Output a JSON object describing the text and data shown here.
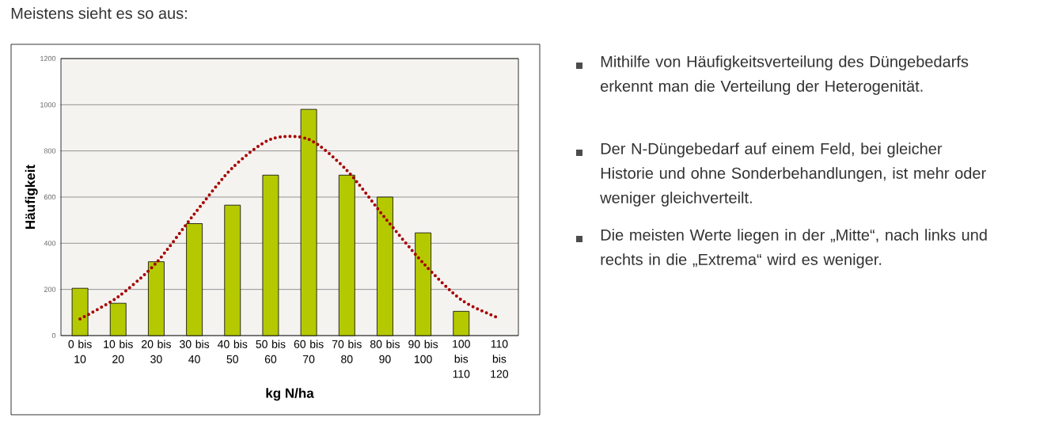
{
  "chart_data": {
    "type": "bar",
    "title": "Meistens sieht es so aus:",
    "xlabel": "kg N/ha",
    "ylabel": "Häufigkeit",
    "categories": [
      "0 bis 10",
      "10 bis 20",
      "20 bis 30",
      "30 bis 40",
      "40 bis 50",
      "50 bis 60",
      "60 bis 70",
      "70 bis 80",
      "80 bis 90",
      "90 bis 100",
      "100 bis 110",
      "110 bis 120"
    ],
    "series": [
      {
        "color": "#b5c900",
        "values": [
          205,
          140,
          320,
          485,
          565,
          695,
          980,
          695,
          600,
          445,
          105,
          null
        ]
      },
      {
        "type": "line",
        "color": "#a50000",
        "line_style": "dotted",
        "values": [
          72,
          168,
          315,
          527,
          727,
          850,
          850,
          716,
          510,
          315,
          155,
          75
        ]
      }
    ],
    "ylim": [
      0,
      1200
    ],
    "yticks": [
      0,
      200,
      400,
      600,
      800,
      1000,
      1200
    ],
    "grid": "y",
    "annotations": [
      "Mithilfe von Häufigkeitsverteilung des Düngebedarfs erkennt man die Verteilung der Heterogenität.",
      "Der N-Düngebedarf auf einem Feld, bei gleicher Historie und ohne Sonderbehandlungen, ist mehr oder weniger gleichverteilt.",
      "Die meisten Werte liegen in der „Mitte“, nach links und rechts in die „Extrema“ wird es weniger."
    ]
  }
}
